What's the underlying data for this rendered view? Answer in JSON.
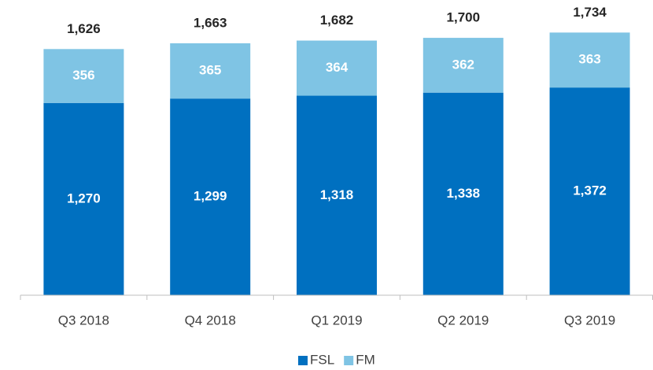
{
  "chart_data": {
    "type": "stacked_bar",
    "categories": [
      "Q3 2018",
      "Q4 2018",
      "Q1 2019",
      "Q2 2019",
      "Q3 2019"
    ],
    "series": [
      {
        "name": "FSL",
        "color": "#0070c0",
        "values": [
          1270,
          1299,
          1318,
          1338,
          1372
        ],
        "value_labels": [
          "1,270",
          "1,299",
          "1,318",
          "1,338",
          "1,372"
        ]
      },
      {
        "name": "FM",
        "color": "#7fc4e4",
        "values": [
          356,
          365,
          364,
          362,
          363
        ]
      }
    ],
    "totals": {
      "values": [
        1626,
        1663,
        1682,
        1700,
        1734
      ],
      "value_labels": [
        "1,626",
        "1,663",
        "1,682",
        "1,700",
        "1,734"
      ]
    },
    "ylim": [
      0,
      1950
    ],
    "legend": "bottom"
  }
}
